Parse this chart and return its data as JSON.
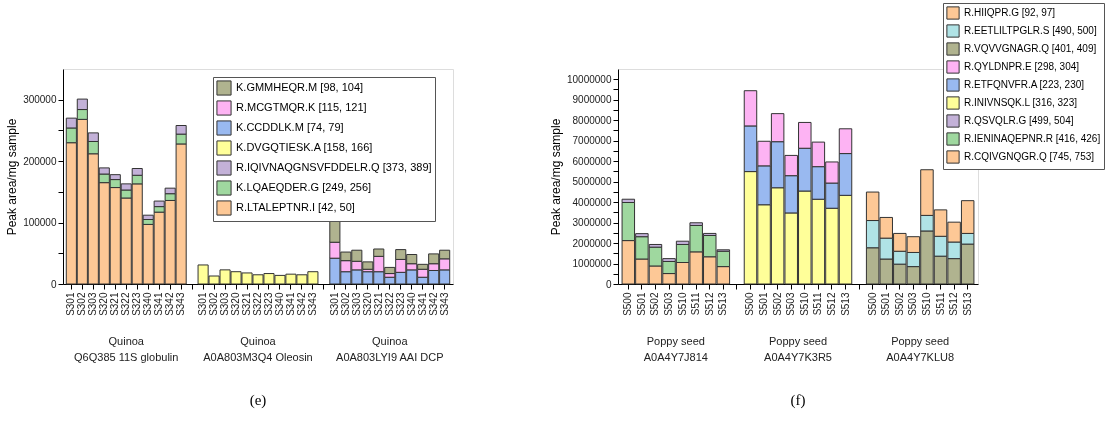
{
  "chart_data": [
    {
      "type": "bar",
      "stacked": true,
      "title": "(e)",
      "ylabel": "Peak area/mg sample",
      "legend": "top right",
      "categories": [
        "S301",
        "S302",
        "S303",
        "S320",
        "S321",
        "S322",
        "S323",
        "S340",
        "S341",
        "S342",
        "S343",
        null,
        "S301",
        "S302",
        "S303",
        "S320",
        "S321",
        "S322",
        "S323",
        "S340",
        "S341",
        "S342",
        "S343",
        null,
        "S301",
        "S302",
        "S303",
        "S320",
        "S321",
        "S322",
        "S323",
        "S340",
        "S341",
        "S342",
        "S343"
      ],
      "ylim": [
        0,
        350000
      ],
      "yticks": [
        0,
        {
          "value": 50000,
          "label": null
        },
        100000,
        {
          "value": 150000,
          "label": null
        },
        200000,
        {
          "value": 250000,
          "label": null
        },
        300000
      ],
      "annotations": [
        "Quinoa\nQ6Q385 11S globulin",
        "Quinoa\nA0A803M3Q4 Oleosin",
        "Quinoa\nA0A803LYI9 AAI DCP"
      ],
      "series": [
        {
          "name": "R.LTALEPTNR.I [42, 50]",
          "color": "#fdc896",
          "values": [
            230000,
            268000,
            212000,
            165000,
            157000,
            140000,
            163000,
            97000,
            117000,
            136000,
            228000,
            null,
            null,
            null,
            null,
            null,
            null,
            null,
            null,
            null,
            null,
            null,
            null,
            null,
            null,
            null,
            null,
            null,
            null,
            null,
            null,
            null,
            null,
            null,
            null
          ]
        },
        {
          "name": "K.LQAEQDER.G [249, 256]",
          "color": "#9fd89f",
          "values": [
            24000,
            16000,
            20000,
            14000,
            13000,
            13000,
            14000,
            8000,
            9000,
            11000,
            16000,
            null,
            null,
            null,
            null,
            null,
            null,
            null,
            null,
            null,
            null,
            null,
            null,
            null,
            null,
            null,
            null,
            null,
            null,
            null,
            null,
            null,
            null,
            null,
            null
          ]
        },
        {
          "name": "R.IQIVNAQGNSVFDDELR.Q [373, 389]",
          "color": "#c3b1d8",
          "values": [
            16000,
            17000,
            14000,
            10000,
            8000,
            10000,
            11000,
            7000,
            9000,
            9000,
            14000,
            null,
            null,
            null,
            null,
            null,
            null,
            null,
            null,
            null,
            null,
            null,
            null,
            null,
            null,
            null,
            null,
            null,
            null,
            null,
            null,
            null,
            null,
            null,
            null
          ]
        },
        {
          "name": "K.DVGQTIESK.A [158, 166]",
          "color": "#ffff99",
          "values": [
            null,
            null,
            null,
            null,
            null,
            null,
            null,
            null,
            null,
            null,
            null,
            null,
            31000,
            13000,
            23000,
            20000,
            18000,
            15000,
            17000,
            14000,
            16000,
            15000,
            20000,
            null,
            null,
            null,
            null,
            null,
            null,
            null,
            null,
            null,
            null,
            null,
            null
          ]
        },
        {
          "name": "K.CCDDLK.M [74, 79]",
          "color": "#99b9f0",
          "values": [
            null,
            null,
            null,
            null,
            null,
            null,
            null,
            null,
            null,
            null,
            null,
            null,
            null,
            null,
            null,
            null,
            null,
            null,
            null,
            null,
            null,
            null,
            null,
            null,
            42000,
            20000,
            23000,
            20000,
            20000,
            11000,
            19000,
            23000,
            11000,
            22000,
            23000
          ]
        },
        {
          "name": "R.MCGTMQR.K [115, 121]",
          "color": "#fdb3f3",
          "values": [
            null,
            null,
            null,
            null,
            null,
            null,
            null,
            null,
            null,
            null,
            null,
            null,
            null,
            null,
            null,
            null,
            null,
            null,
            null,
            null,
            null,
            null,
            null,
            null,
            26000,
            18000,
            14000,
            4000,
            25000,
            6000,
            21000,
            10000,
            13000,
            11000,
            18000
          ]
        },
        {
          "name": "K.GMMHEQR.M [98, 104]",
          "color": "#b0b38f",
          "values": [
            null,
            null,
            null,
            null,
            null,
            null,
            null,
            null,
            null,
            null,
            null,
            null,
            null,
            null,
            null,
            null,
            null,
            null,
            null,
            null,
            null,
            null,
            null,
            null,
            34000,
            14000,
            18000,
            12000,
            12000,
            10000,
            16000,
            15000,
            8000,
            16000,
            14000
          ]
        }
      ]
    },
    {
      "type": "bar",
      "stacked": true,
      "title": "(f)",
      "ylabel": "Peak area/mg sample",
      "legend": "top right",
      "categories": [
        "S500",
        "S501",
        "S502",
        "S503",
        "S510",
        "S511",
        "S512",
        "S513",
        null,
        "S500",
        "S501",
        "S502",
        "S503",
        "S510",
        "S511",
        "S512",
        "S513",
        null,
        "S500",
        "S501",
        "S502",
        "S503",
        "S510",
        "S511",
        "S512",
        "S513"
      ],
      "ylim": [
        0,
        10500000
      ],
      "yticks": [
        0,
        {
          "value": 500000,
          "label": null
        },
        1000000,
        {
          "value": 1500000,
          "label": null
        },
        2000000,
        {
          "value": 2500000,
          "label": null
        },
        3000000,
        {
          "value": 3500000,
          "label": null
        },
        4000000,
        {
          "value": 4500000,
          "label": null
        },
        5000000,
        {
          "value": 5500000,
          "label": null
        },
        6000000,
        {
          "value": 6500000,
          "label": null
        },
        7000000,
        {
          "value": 7500000,
          "label": null
        },
        8000000,
        {
          "value": 8500000,
          "label": null
        },
        9000000,
        {
          "value": 9500000,
          "label": null
        },
        10000000
      ],
      "annotations": [
        "Poppy seed\nA0A4Y7J814",
        "Poppy seed\nA0A4Y7K3R5",
        "Poppy seed\nA0A4Y7KLU8"
      ],
      "series": [
        {
          "name": "R.CQIVGNQGR.Q [745, 753]",
          "color": "#fdc896",
          "values": [
            2120000,
            1220000,
            880000,
            510000,
            1050000,
            1570000,
            1330000,
            850000,
            null,
            null,
            null,
            null,
            null,
            null,
            null,
            null,
            null,
            null,
            null,
            null,
            null,
            null,
            null,
            null,
            null,
            null
          ]
        },
        {
          "name": "R.IENINAQEPNR.R [416, 426]",
          "color": "#9fd89f",
          "values": [
            1860000,
            1090000,
            920000,
            590000,
            880000,
            1290000,
            1040000,
            750000,
            null,
            null,
            null,
            null,
            null,
            null,
            null,
            null,
            null,
            null,
            null,
            null,
            null,
            null,
            null,
            null,
            null,
            null
          ]
        },
        {
          "name": "R.QSVQLR.G [499, 504]",
          "color": "#c3b1d8",
          "values": [
            160000,
            150000,
            130000,
            140000,
            160000,
            130000,
            100000,
            70000,
            null,
            null,
            null,
            null,
            null,
            null,
            null,
            null,
            null,
            null,
            null,
            null,
            null,
            null,
            null,
            null,
            null,
            null
          ]
        },
        {
          "name": "R.INIVNSQK.L [316, 323]",
          "color": "#ffff99",
          "values": [
            null,
            null,
            null,
            null,
            null,
            null,
            null,
            null,
            null,
            5490000,
            3870000,
            4700000,
            3470000,
            4540000,
            4140000,
            3700000,
            4330000,
            null,
            null,
            null,
            null,
            null,
            null,
            null,
            null,
            null
          ]
        },
        {
          "name": "R.ETFQNVFR.A [223, 230]",
          "color": "#99b9f0",
          "values": [
            null,
            null,
            null,
            null,
            null,
            null,
            null,
            null,
            null,
            2230000,
            1900000,
            2250000,
            1820000,
            2090000,
            1590000,
            1230000,
            2040000,
            null,
            null,
            null,
            null,
            null,
            null,
            null,
            null,
            null
          ]
        },
        {
          "name": "R.QYLDNPR.E [298, 304]",
          "color": "#fdb3f3",
          "values": [
            null,
            null,
            null,
            null,
            null,
            null,
            null,
            null,
            null,
            1720000,
            1200000,
            1370000,
            990000,
            1260000,
            1200000,
            1030000,
            1210000,
            null,
            null,
            null,
            null,
            null,
            null,
            null,
            null,
            null
          ]
        },
        {
          "name": "R.VQVVGNAGR.Q [401, 409]",
          "color": "#b0b38f",
          "values": [
            null,
            null,
            null,
            null,
            null,
            null,
            null,
            null,
            null,
            null,
            null,
            null,
            null,
            null,
            null,
            null,
            null,
            null,
            1770000,
            1220000,
            970000,
            850000,
            2590000,
            1360000,
            1240000,
            1950000
          ]
        },
        {
          "name": "R.EETLILTPGLR.S [490, 500]",
          "color": "#b0e3e6",
          "values": [
            null,
            null,
            null,
            null,
            null,
            null,
            null,
            null,
            null,
            null,
            null,
            null,
            null,
            null,
            null,
            null,
            null,
            null,
            1330000,
            1020000,
            630000,
            690000,
            760000,
            970000,
            810000,
            520000
          ]
        },
        {
          "name": "R.HIIQPR.G [92, 97]",
          "color": "#fdc896",
          "values": [
            null,
            null,
            null,
            null,
            null,
            null,
            null,
            null,
            null,
            null,
            null,
            null,
            null,
            null,
            null,
            null,
            null,
            null,
            1390000,
            1010000,
            870000,
            770000,
            2230000,
            1290000,
            970000,
            1600000
          ]
        }
      ]
    }
  ]
}
